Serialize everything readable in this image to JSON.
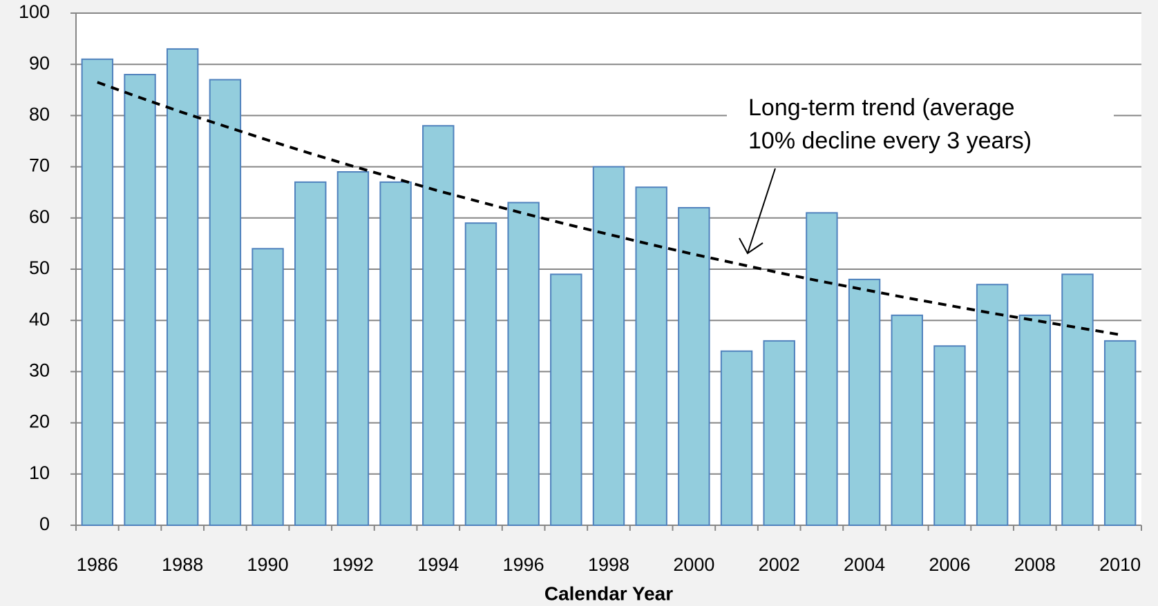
{
  "chart_data": {
    "type": "bar",
    "categories": [
      "1986",
      null,
      "1988",
      null,
      "1990",
      null,
      "1992",
      null,
      "1994",
      null,
      "1996",
      null,
      "1998",
      null,
      "2000",
      null,
      "2002",
      null,
      "2004",
      null,
      "2006",
      null,
      "2008",
      null,
      "2010"
    ],
    "series": [
      {
        "type": "bar",
        "color": "#93cddd",
        "values": [
          91,
          88,
          93,
          87,
          54,
          67,
          69,
          67,
          78,
          59,
          63,
          49,
          70,
          66,
          62,
          34,
          36,
          61,
          48,
          41,
          35,
          47,
          41,
          49,
          36
        ]
      },
      {
        "type": "line",
        "color": "#000000",
        "dashed": true,
        "values": [
          86.5,
          83.5,
          80.6,
          77.9,
          75.2,
          72.6,
          70.1,
          67.7,
          65.3,
          63.1,
          60.9,
          58.8,
          56.8,
          54.8,
          52.9,
          51.1,
          49.3,
          47.6,
          46.0,
          44.4,
          42.9,
          41.4,
          40.0,
          38.6,
          37.2
        ]
      }
    ],
    "x_label": "Calendar Year",
    "annotation": [
      "Long-term trend (average",
      "10% decline every 3 years)"
    ],
    "ylim": [
      0,
      100
    ],
    "yticks": [
      0,
      10,
      20,
      30,
      40,
      50,
      60,
      70,
      80,
      90,
      100
    ],
    "grid": true
  }
}
